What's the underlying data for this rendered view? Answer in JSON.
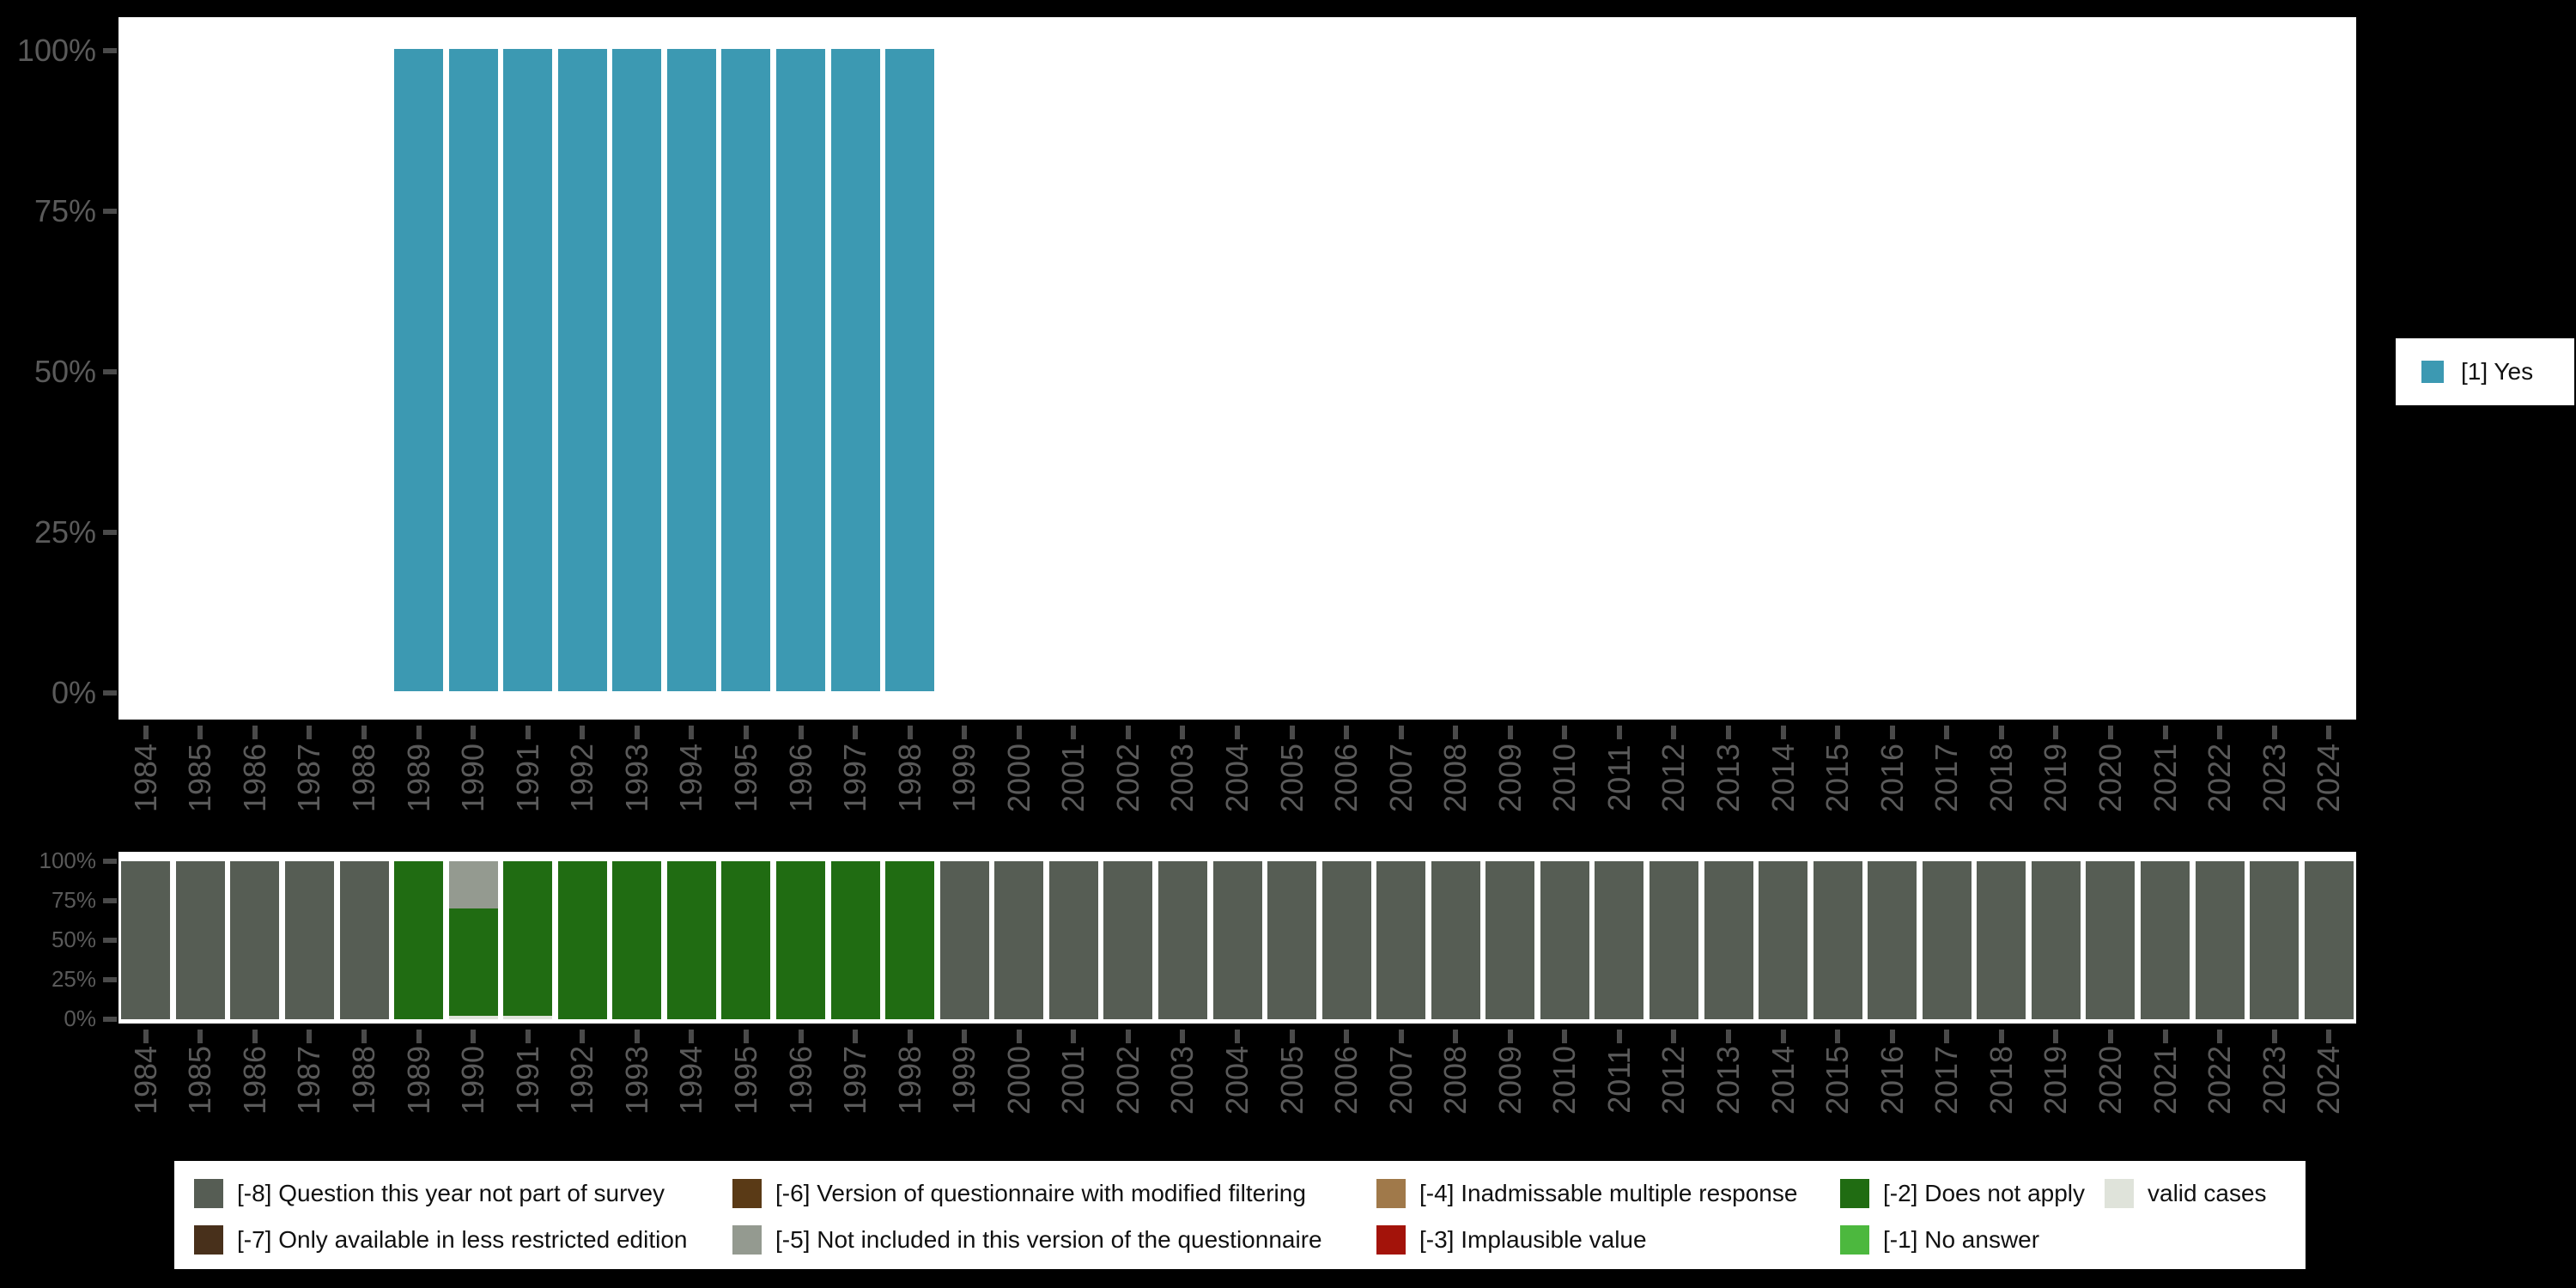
{
  "colors": {
    "background": "#000000",
    "panel": "#ffffff",
    "axis_text": "#5a5a5a",
    "tick": "#4a4a4a",
    "legend_text": "#111111"
  },
  "years": [
    "1984",
    "1985",
    "1986",
    "1987",
    "1988",
    "1989",
    "1990",
    "1991",
    "1992",
    "1993",
    "1994",
    "1995",
    "1996",
    "1997",
    "1998",
    "1999",
    "2000",
    "2001",
    "2002",
    "2003",
    "2004",
    "2005",
    "2006",
    "2007",
    "2008",
    "2009",
    "2010",
    "2011",
    "2012",
    "2013",
    "2014",
    "2015",
    "2016",
    "2017",
    "2018",
    "2019",
    "2020",
    "2021",
    "2022",
    "2023",
    "2024"
  ],
  "chart_data": [
    {
      "id": "valid-answer-shares",
      "type": "bar",
      "stacked": false,
      "title": "",
      "xlabel": "",
      "ylabel": "",
      "ylim": [
        0,
        100
      ],
      "grid": false,
      "legend_position": "right",
      "y_ticks": [
        "100%",
        "75%",
        "50%",
        "25%",
        "0%"
      ],
      "x": [
        "1984",
        "1985",
        "1986",
        "1987",
        "1988",
        "1989",
        "1990",
        "1991",
        "1992",
        "1993",
        "1994",
        "1995",
        "1996",
        "1997",
        "1998",
        "1999",
        "2000",
        "2001",
        "2002",
        "2003",
        "2004",
        "2005",
        "2006",
        "2007",
        "2008",
        "2009",
        "2010",
        "2011",
        "2012",
        "2013",
        "2014",
        "2015",
        "2016",
        "2017",
        "2018",
        "2019",
        "2020",
        "2021",
        "2022",
        "2023",
        "2024"
      ],
      "series": [
        {
          "name": "[1] Yes",
          "color": "#3c99b2",
          "values": [
            0,
            0,
            0,
            0,
            0,
            100,
            100,
            100,
            100,
            100,
            100,
            100,
            100,
            100,
            100,
            0,
            0,
            0,
            0,
            0,
            0,
            0,
            0,
            0,
            0,
            0,
            0,
            0,
            0,
            0,
            0,
            0,
            0,
            0,
            0,
            0,
            0,
            0,
            0,
            0,
            0
          ]
        }
      ]
    },
    {
      "id": "missing-value-shares",
      "type": "bar",
      "stacked": true,
      "title": "",
      "xlabel": "",
      "ylabel": "",
      "ylim": [
        0,
        100
      ],
      "grid": false,
      "legend_position": "bottom",
      "y_ticks": [
        "100%",
        "75%",
        "50%",
        "25%",
        "0%"
      ],
      "x": [
        "1984",
        "1985",
        "1986",
        "1987",
        "1988",
        "1989",
        "1990",
        "1991",
        "1992",
        "1993",
        "1994",
        "1995",
        "1996",
        "1997",
        "1998",
        "1999",
        "2000",
        "2001",
        "2002",
        "2003",
        "2004",
        "2005",
        "2006",
        "2007",
        "2008",
        "2009",
        "2010",
        "2011",
        "2012",
        "2013",
        "2014",
        "2015",
        "2016",
        "2017",
        "2018",
        "2019",
        "2020",
        "2021",
        "2022",
        "2023",
        "2024"
      ],
      "series": [
        {
          "name": "valid cases",
          "color": "#dfe3da",
          "values": [
            0,
            0,
            0,
            0,
            0,
            0,
            2,
            2,
            0,
            0,
            0,
            0,
            0,
            0,
            0,
            0,
            0,
            0,
            0,
            0,
            0,
            0,
            0,
            0,
            0,
            0,
            0,
            0,
            0,
            0,
            0,
            0,
            0,
            0,
            0,
            0,
            0,
            0,
            0,
            0,
            0
          ]
        },
        {
          "name": "[-2] Does not apply",
          "color": "#206c12",
          "values": [
            0,
            0,
            0,
            0,
            0,
            100,
            68,
            98,
            100,
            100,
            100,
            100,
            100,
            100,
            100,
            0,
            0,
            0,
            0,
            0,
            0,
            0,
            0,
            0,
            0,
            0,
            0,
            0,
            0,
            0,
            0,
            0,
            0,
            0,
            0,
            0,
            0,
            0,
            0,
            0,
            0
          ]
        },
        {
          "name": "[-5] Not included in this version of the questionnaire",
          "color": "#949a90",
          "values": [
            0,
            0,
            0,
            0,
            0,
            0,
            30,
            0,
            0,
            0,
            0,
            0,
            0,
            0,
            0,
            0,
            0,
            0,
            0,
            0,
            0,
            0,
            0,
            0,
            0,
            0,
            0,
            0,
            0,
            0,
            0,
            0,
            0,
            0,
            0,
            0,
            0,
            0,
            0,
            0,
            0
          ]
        },
        {
          "name": "[-8] Question this year not part of survey",
          "color": "#565d54",
          "values": [
            100,
            100,
            100,
            100,
            100,
            0,
            0,
            0,
            0,
            0,
            0,
            0,
            0,
            0,
            0,
            100,
            100,
            100,
            100,
            100,
            100,
            100,
            100,
            100,
            100,
            100,
            100,
            100,
            100,
            100,
            100,
            100,
            100,
            100,
            100,
            100,
            100,
            100,
            100,
            100,
            100
          ]
        }
      ]
    }
  ],
  "legend_bottom": {
    "rows": [
      [
        {
          "code": "-8",
          "label": "[-8] Question this year not part of survey",
          "color": "#565d54"
        },
        {
          "code": "-6",
          "label": "[-6] Version of questionnaire with modified filtering",
          "color": "#5a3a16"
        },
        {
          "code": "-4",
          "label": "[-4] Inadmissable multiple response",
          "color": "#a0794a"
        },
        {
          "code": "-2",
          "label": "[-2] Does not apply",
          "color": "#206c12"
        },
        {
          "code": "valid",
          "label": "valid cases",
          "color": "#dfe3da"
        }
      ],
      [
        {
          "code": "-7",
          "label": "[-7] Only available in less restricted edition",
          "color": "#48301b"
        },
        {
          "code": "-5",
          "label": "[-5] Not included in this version of the questionnaire",
          "color": "#949a90"
        },
        {
          "code": "-3",
          "label": "[-3] Implausible value",
          "color": "#a3130a"
        },
        {
          "code": "-1",
          "label": "[-1] No answer",
          "color": "#4cb83e"
        }
      ]
    ]
  }
}
